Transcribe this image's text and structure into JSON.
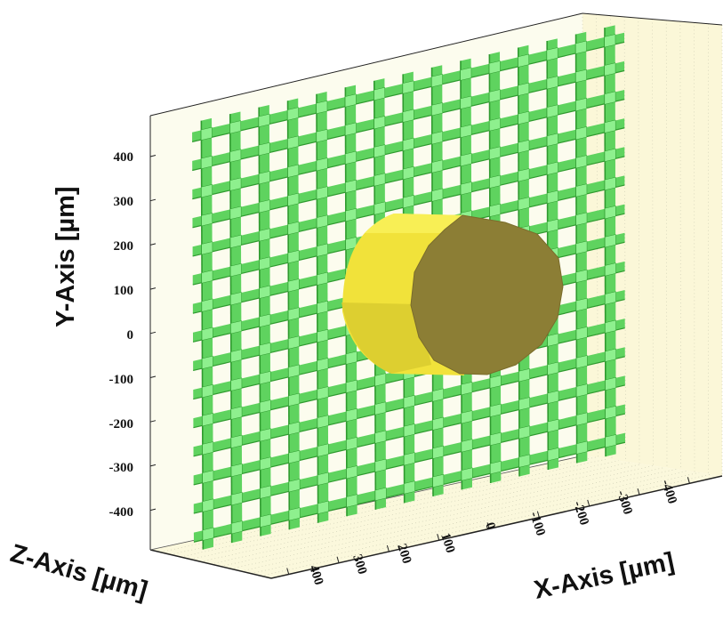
{
  "chart_data": {
    "type": "3d-scene",
    "xlabel": "X-Axis [µm]",
    "ylabel": "Y-Axis [µm]",
    "zlabel": "Z-Axis [µm]",
    "x_ticks": [
      "400",
      "300",
      "200",
      "100",
      "0",
      "-100",
      "-200",
      "-300",
      "-400"
    ],
    "y_ticks": [
      "400",
      "300",
      "200",
      "100",
      "0",
      "-100",
      "-200",
      "-300",
      "-400"
    ],
    "grid_columns": 15,
    "grid_rows": 15,
    "colors": {
      "grid_bar": "#5fd35f",
      "grid_bar_dark": "#2f9a2f",
      "grid_bar_light": "#8ef08e",
      "cylinder_side": "#f2e63c",
      "cylinder_side_dark": "#d4c72c",
      "cylinder_face": "#8f8236",
      "box_wall": "#fbfbe6"
    }
  }
}
